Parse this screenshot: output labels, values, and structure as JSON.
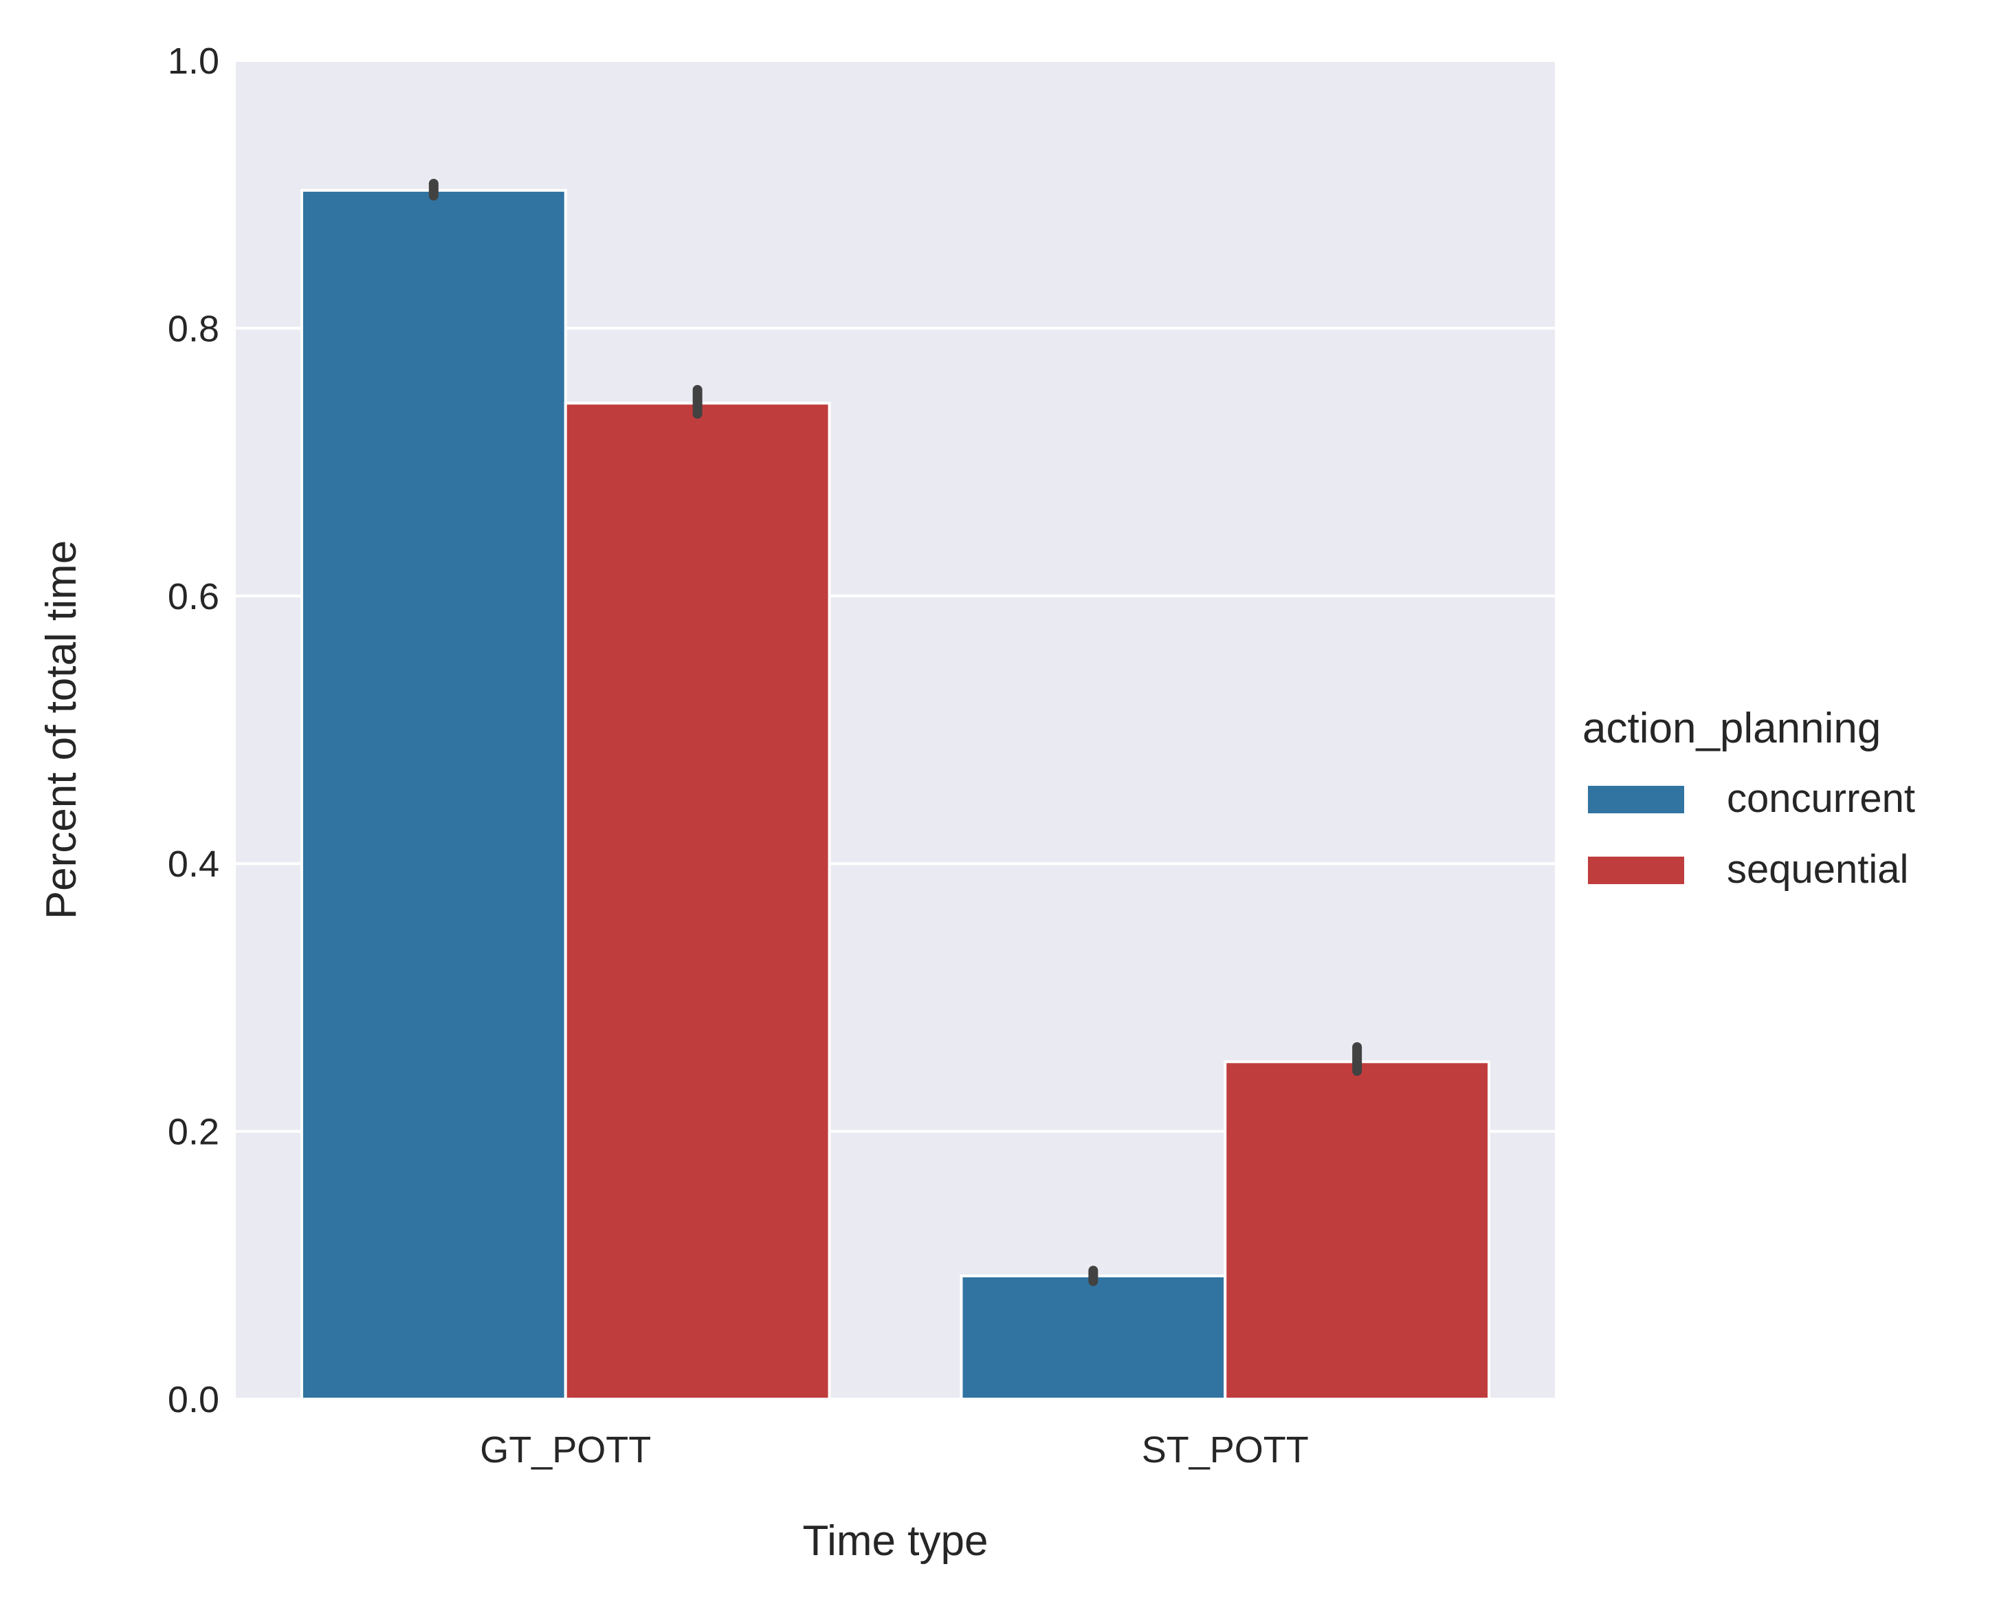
{
  "chart_data": {
    "type": "bar",
    "categories": [
      "GT_POTT",
      "ST_POTT"
    ],
    "series": [
      {
        "name": "concurrent",
        "color": "#3274a1",
        "values": [
          0.903,
          0.092
        ],
        "err_low": [
          0.899,
          0.088
        ],
        "err_high": [
          0.908,
          0.096
        ]
      },
      {
        "name": "sequential",
        "color": "#c03d3e",
        "values": [
          0.744,
          0.252
        ],
        "err_low": [
          0.736,
          0.245
        ],
        "err_high": [
          0.754,
          0.263
        ]
      }
    ],
    "xlabel": "Time type",
    "ylabel": "Percent of total time",
    "ylim": [
      0,
      1.0
    ],
    "yticks": [
      "0.0",
      "0.2",
      "0.4",
      "0.6",
      "0.8",
      "1.0"
    ],
    "ytick_values": [
      0,
      0.2,
      0.4,
      0.6,
      0.8,
      1.0
    ],
    "grid": true,
    "legend": {
      "title": "action_planning",
      "placement": "right"
    },
    "style": {
      "background": "#eaeaf2",
      "grid_color": "#ffffff",
      "error_bar_color": "#424242"
    }
  }
}
